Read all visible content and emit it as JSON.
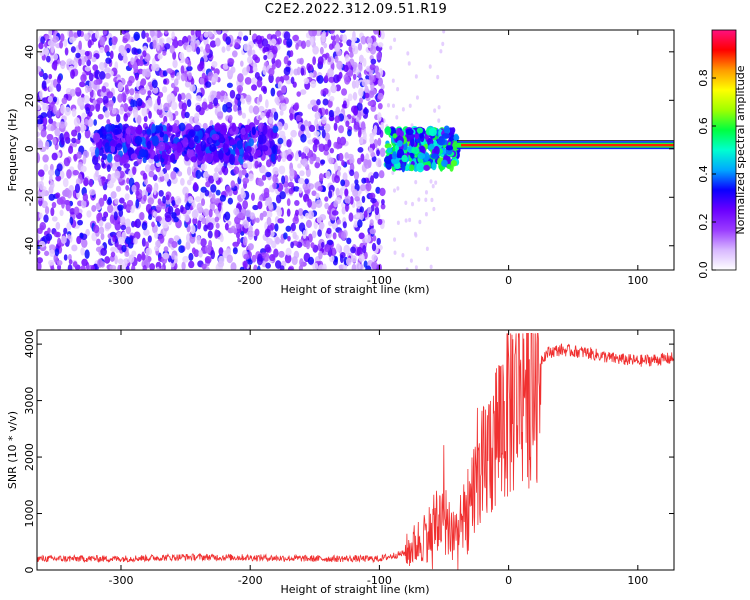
{
  "title": "C2E2.2022.312.09.51.R19",
  "chart_data": [
    {
      "type": "heatmap",
      "xlabel": "Height of straight line (km)",
      "ylabel": "Frequency (Hz)",
      "xlim": [
        -365,
        128
      ],
      "ylim": [
        -50,
        49
      ],
      "xticks": [
        -300,
        -200,
        -100,
        0,
        100
      ],
      "yticks": [
        -40,
        -20,
        0,
        20,
        40
      ],
      "colorbar": {
        "label": "Normalized spectral amplitude",
        "range": [
          0,
          1
        ],
        "ticks": [
          0.0,
          0.2,
          0.4,
          0.6,
          0.8
        ],
        "tick_labels": [
          "0.0",
          "0.2",
          "0.4",
          "0.6",
          "0.8"
        ],
        "colormap": [
          "#ffffff",
          "#d8b8ff",
          "#9a3cff",
          "#6a00ff",
          "#0a00ff",
          "#00a8ff",
          "#00ffd0",
          "#00ff40",
          "#a0ff00",
          "#ffff00",
          "#ff9a00",
          "#ff0000",
          "#ff1080"
        ]
      },
      "features": [
        {
          "region": "noise",
          "x_range": [
            -365,
            -97
          ],
          "freq_range": [
            -50,
            49
          ],
          "amplitude": 0.15
        },
        {
          "region": "band",
          "x_range": [
            -320,
            -180
          ],
          "freq_center": 2,
          "amplitude": 0.3
        },
        {
          "region": "signal",
          "x_range": [
            -95,
            -40
          ],
          "freq_center": 0,
          "amplitude": 0.45
        },
        {
          "region": "carrier",
          "x_range": [
            -40,
            128
          ],
          "freq_center": 1.5,
          "amplitude": 0.9
        }
      ]
    },
    {
      "type": "line",
      "xlabel": "Height of straight line (km)",
      "ylabel": "SNR (10 * v/v)",
      "xlim": [
        -365,
        128
      ],
      "ylim": [
        0,
        4250
      ],
      "xticks": [
        -300,
        -200,
        -100,
        0,
        100
      ],
      "yticks": [
        0,
        1000,
        2000,
        3000,
        4000
      ],
      "color": "#f03030",
      "series": [
        {
          "x": [
            -365,
            -300,
            -250,
            -200,
            -150,
            -100,
            -80,
            -60,
            -50,
            -40,
            -30,
            -20,
            -10,
            0,
            10,
            20,
            30,
            40,
            60,
            80,
            100,
            128
          ],
          "y": [
            200,
            200,
            230,
            220,
            200,
            200,
            300,
            700,
            1000,
            600,
            1200,
            1800,
            2400,
            2900,
            3400,
            3600,
            3850,
            3900,
            3850,
            3750,
            3700,
            3750
          ]
        }
      ]
    }
  ]
}
